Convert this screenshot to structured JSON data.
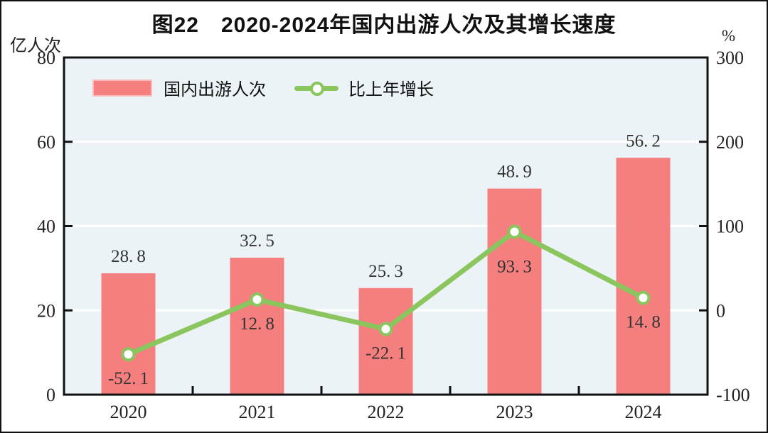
{
  "title": "图22　2020-2024年国内出游人次及其增长速度",
  "chart_data": {
    "type": "bar",
    "title": "图22　2020-2024年国内出游人次及其增长速度",
    "categories": [
      "2020",
      "2021",
      "2022",
      "2023",
      "2024"
    ],
    "series": [
      {
        "name": "国内出游人次",
        "type": "bar",
        "axis": "left",
        "values": [
          28.8,
          32.5,
          25.3,
          48.9,
          56.2
        ],
        "color": "#f57f7f"
      },
      {
        "name": "比上年增长",
        "type": "line",
        "axis": "right",
        "values": [
          -52.1,
          12.8,
          -22.1,
          93.3,
          14.8
        ],
        "color": "#8bc55d",
        "marker": "circle-white-fill"
      }
    ],
    "left_axis": {
      "label": "亿人次",
      "min": 0,
      "max": 80,
      "ticks": [
        0,
        20,
        40,
        60,
        80
      ]
    },
    "right_axis": {
      "label": "%",
      "min": -100,
      "max": 300,
      "ticks": [
        -100,
        0,
        100,
        200,
        300
      ]
    },
    "grid": true,
    "gridline_color": "#ffffff",
    "plot_bg": "#ecf3f7",
    "border_color": "#111111",
    "label_color": "#333333",
    "legend_position": "top-left-inside"
  }
}
